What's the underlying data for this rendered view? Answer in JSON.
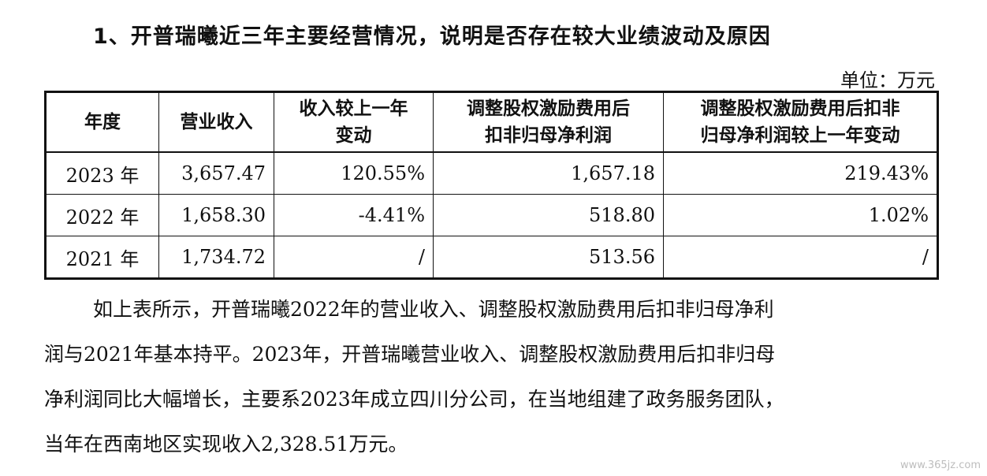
{
  "heading": "1、开普瑞曦近三年主要经营情况，说明是否存在较大业绩波动及原因",
  "unit": "单位：万元",
  "table": {
    "headers": [
      {
        "line1": "年度",
        "line2": ""
      },
      {
        "line1": "营业收入",
        "line2": ""
      },
      {
        "line1": "收入较上一年",
        "line2": "变动"
      },
      {
        "line1": "调整股权激励费用后",
        "line2": "扣非归母净利润"
      },
      {
        "line1": "调整股权激励费用后扣非",
        "line2": "归母净利润较上一年变动"
      }
    ],
    "rows": [
      {
        "year": "2023 年",
        "revenue": "3,657.47",
        "rev_change": "120.55%",
        "profit": "1,657.18",
        "profit_change": "219.43%"
      },
      {
        "year": "2022 年",
        "revenue": "1,658.30",
        "rev_change": "-4.41%",
        "profit": "518.80",
        "profit_change": "1.02%"
      },
      {
        "year": "2021 年",
        "revenue": "1,734.72",
        "rev_change": "/",
        "profit": "513.56",
        "profit_change": "/"
      }
    ]
  },
  "paragraph": [
    "如上表所示，开普瑞曦2022年的营业收入、调整股权激励费用后扣非归母净利",
    "润与2021年基本持平。2023年，开普瑞曦营业收入、调整股权激励费用后扣非归母",
    "净利润同比大幅增长，主要系2023年成立四川分公司，在当地组建了政务服务团队，",
    "当年在西南地区实现收入2,328.51万元。"
  ],
  "watermark": "www.365jz.com"
}
